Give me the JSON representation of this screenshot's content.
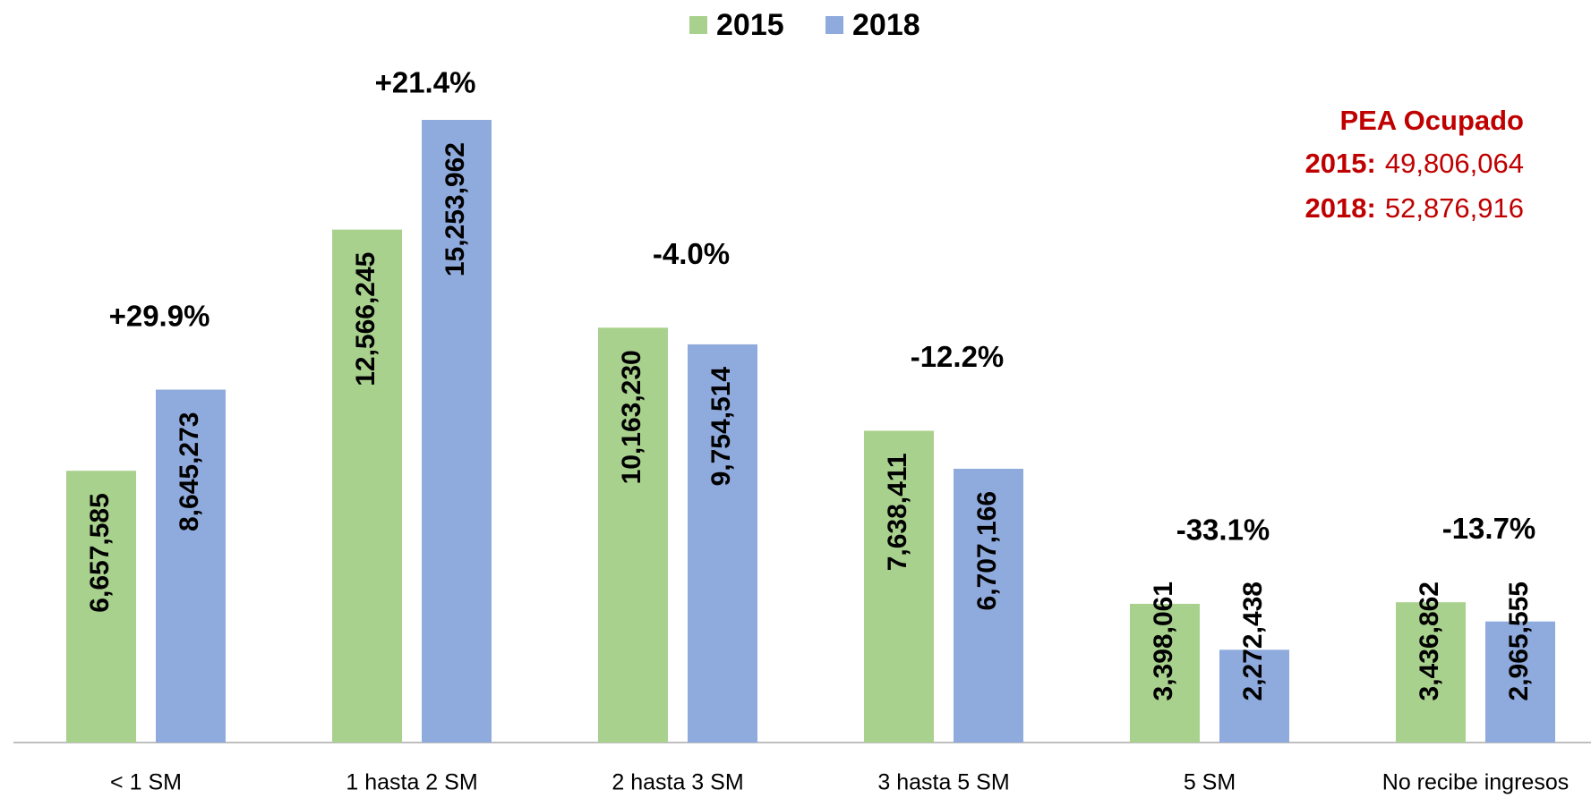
{
  "chart_data": {
    "type": "bar",
    "categories": [
      "< 1 SM",
      "1 hasta 2 SM",
      "2 hasta 3 SM",
      "3 hasta 5 SM",
      "5 SM",
      "No recibe ingresos"
    ],
    "series": [
      {
        "name": "2015",
        "color": "#a9d18e",
        "values": [
          6657585,
          12566245,
          10163230,
          7638411,
          3398061,
          3436862
        ],
        "value_labels": [
          "6,657,585",
          "12,566,245",
          "10,163,230",
          "7,638,411",
          "3,398,061",
          "3,436,862"
        ]
      },
      {
        "name": "2018",
        "color": "#8faadc",
        "values": [
          8645273,
          15253962,
          9754514,
          6707166,
          2272438,
          2965555
        ],
        "value_labels": [
          "8,645,273",
          "15,253,962",
          "9,754,514",
          "6,707,166",
          "2,272,438",
          "2,965,555"
        ]
      }
    ],
    "annotations": [
      "+29.9%",
      "+21.4%",
      "-4.0%",
      "-12.2%",
      "-33.1%",
      "-13.7%"
    ],
    "info": {
      "title": "PEA Ocupado",
      "rows": [
        {
          "label": "2015:",
          "value": "49,806,064"
        },
        {
          "label": "2018:",
          "value": "52,876,916"
        }
      ]
    },
    "legend": "top"
  }
}
